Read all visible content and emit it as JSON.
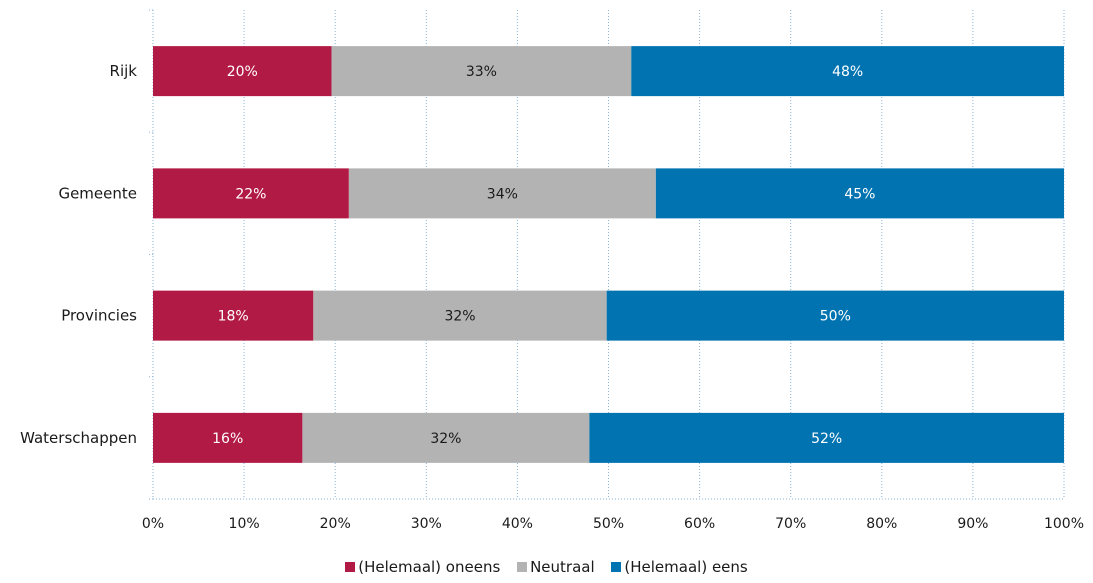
{
  "chart_data": {
    "type": "bar",
    "orientation": "horizontal",
    "stacked": true,
    "percent_stacked": true,
    "categories": [
      "Rijk",
      "Gemeente",
      "Provincies",
      "Waterschappen"
    ],
    "series": [
      {
        "name": "(Helemaal) oneens",
        "color": "#b21a46",
        "label_color": "#ffffff",
        "values": [
          19.6,
          21.5,
          17.6,
          16.4
        ],
        "labels": [
          "20%",
          "22%",
          "18%",
          "16%"
        ]
      },
      {
        "name": "Neutraal",
        "color": "#b3b3b3",
        "label_color": "#1a1a1a",
        "values": [
          32.9,
          33.7,
          32.2,
          31.5
        ],
        "labels": [
          "33%",
          "34%",
          "32%",
          "32%"
        ]
      },
      {
        "name": "(Helemaal) eens",
        "color": "#0073b0",
        "label_color": "#ffffff",
        "values": [
          47.5,
          44.8,
          50.2,
          52.1
        ],
        "labels": [
          "48%",
          "45%",
          "50%",
          "52%"
        ]
      }
    ],
    "xlim": [
      0,
      100
    ],
    "x_ticks": [
      "0%",
      "10%",
      "20%",
      "30%",
      "40%",
      "50%",
      "60%",
      "70%",
      "80%",
      "90%",
      "100%"
    ],
    "grid": true,
    "legend_position": "bottom"
  }
}
